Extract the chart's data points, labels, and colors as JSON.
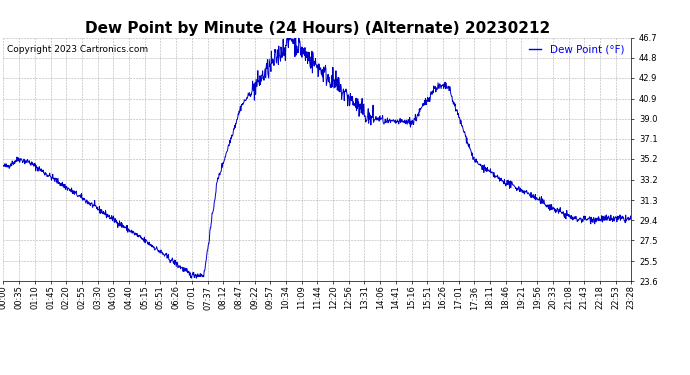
{
  "title": "Dew Point by Minute (24 Hours) (Alternate) 20230212",
  "copyright": "Copyright 2023 Cartronics.com",
  "legend_label": "Dew Point (°F)",
  "line_color": "#0000cc",
  "legend_color": "#0000ee",
  "copyright_color": "#000000",
  "background_color": "#ffffff",
  "grid_color": "#b0b0b0",
  "ylim": [
    23.6,
    46.7
  ],
  "yticks": [
    23.6,
    25.5,
    27.5,
    29.4,
    31.3,
    33.2,
    35.2,
    37.1,
    39.0,
    40.9,
    42.9,
    44.8,
    46.7
  ],
  "xtick_labels": [
    "00:00",
    "00:35",
    "01:10",
    "01:45",
    "02:20",
    "02:55",
    "03:30",
    "04:05",
    "04:40",
    "05:15",
    "05:51",
    "06:26",
    "07:01",
    "07:37",
    "08:12",
    "08:47",
    "09:22",
    "09:57",
    "10:34",
    "11:09",
    "11:44",
    "12:20",
    "12:56",
    "13:31",
    "14:06",
    "14:41",
    "15:16",
    "15:51",
    "16:26",
    "17:01",
    "17:36",
    "18:11",
    "18:46",
    "19:21",
    "19:56",
    "20:33",
    "21:08",
    "21:43",
    "22:18",
    "22:53",
    "23:28"
  ],
  "title_fontsize": 11,
  "tick_fontsize": 6,
  "legend_fontsize": 7.5,
  "copyright_fontsize": 6.5
}
